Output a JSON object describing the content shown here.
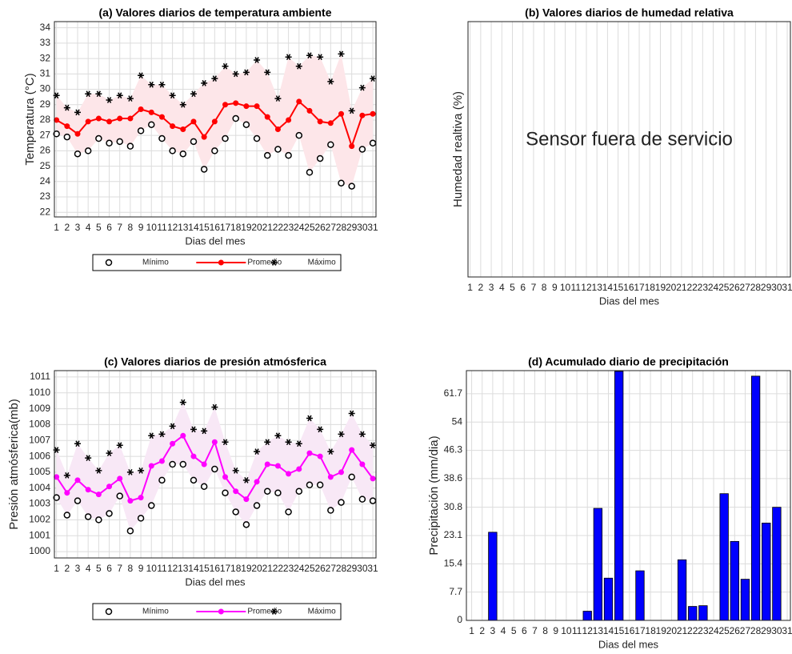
{
  "chart_data": [
    {
      "type": "line",
      "title": "(a) Valores diarios de temperatura ambiente",
      "xlabel": "Dias del mes",
      "ylabel": "Temperatura (°C)",
      "x": [
        1,
        2,
        3,
        4,
        5,
        6,
        7,
        8,
        9,
        10,
        11,
        12,
        13,
        14,
        15,
        16,
        17,
        18,
        19,
        20,
        21,
        22,
        23,
        24,
        25,
        26,
        27,
        28,
        29,
        30,
        31
      ],
      "xlim": [
        0.8,
        31.3
      ],
      "xticks": [
        1,
        2,
        3,
        4,
        5,
        6,
        7,
        8,
        9,
        10,
        11,
        12,
        13,
        14,
        15,
        16,
        17,
        18,
        19,
        20,
        21,
        22,
        23,
        24,
        25,
        26,
        27,
        28,
        29,
        30,
        31
      ],
      "ylim": [
        21.7,
        34.4
      ],
      "yticks": [
        22,
        23,
        24,
        25,
        26,
        27,
        28,
        29,
        30,
        31,
        32,
        33,
        34
      ],
      "grid": true,
      "legend": "below",
      "band": {
        "color": "#fde6e9"
      },
      "series": [
        {
          "name": "Mínimo",
          "color": "#000000",
          "marker": "circle-open",
          "line": false,
          "values": [
            27.1,
            26.9,
            25.8,
            26.0,
            26.8,
            26.5,
            26.6,
            26.3,
            27.3,
            27.7,
            26.8,
            26.0,
            25.8,
            26.6,
            24.8,
            26.0,
            26.8,
            28.1,
            27.7,
            26.8,
            25.7,
            26.1,
            25.7,
            27.0,
            24.6,
            25.5,
            26.4,
            23.9,
            23.7,
            26.1,
            26.5
          ]
        },
        {
          "name": "Promedio",
          "color": "#ff0000",
          "marker": "circle",
          "line": true,
          "values": [
            28.0,
            27.6,
            27.1,
            27.9,
            28.1,
            27.9,
            28.1,
            28.1,
            28.7,
            28.5,
            28.2,
            27.6,
            27.4,
            27.9,
            26.9,
            27.9,
            29.0,
            29.1,
            28.9,
            28.9,
            28.2,
            27.4,
            28.0,
            29.2,
            28.6,
            27.9,
            27.8,
            28.4,
            26.3,
            28.3,
            28.4
          ]
        },
        {
          "name": "Máximo",
          "color": "#000000",
          "marker": "star",
          "line": false,
          "values": [
            29.6,
            28.8,
            28.5,
            29.7,
            29.7,
            29.3,
            29.6,
            29.4,
            30.9,
            30.3,
            30.3,
            29.6,
            29.0,
            29.7,
            30.4,
            30.7,
            31.5,
            31.0,
            31.1,
            31.9,
            31.1,
            29.4,
            32.1,
            31.5,
            32.2,
            32.1,
            30.5,
            32.3,
            28.6,
            30.1,
            30.7
          ]
        }
      ]
    },
    {
      "type": "line",
      "title": "(b) Valores diarios de humedad relativa",
      "xlabel": "Dias del mes",
      "ylabel": "Humedad realtiva (%)",
      "annotation": "Sensor fuera de servicio",
      "xlim": [
        0.8,
        31.3
      ],
      "xticks": [
        1,
        2,
        3,
        4,
        5,
        6,
        7,
        8,
        9,
        10,
        11,
        12,
        13,
        14,
        15,
        16,
        17,
        18,
        19,
        20,
        21,
        22,
        23,
        24,
        25,
        26,
        27,
        28,
        29,
        30,
        31
      ],
      "grid": true,
      "series": []
    },
    {
      "type": "line",
      "title": "(c) Valores diarios de presión atmósferica",
      "xlabel": "Dias del mes",
      "ylabel": "Presión atmósferica(mb)",
      "x": [
        1,
        2,
        3,
        4,
        5,
        6,
        7,
        8,
        9,
        10,
        11,
        12,
        13,
        14,
        15,
        16,
        17,
        18,
        19,
        20,
        21,
        22,
        23,
        24,
        25,
        26,
        27,
        28,
        29,
        30,
        31
      ],
      "xlim": [
        0.8,
        31.3
      ],
      "xticks": [
        1,
        2,
        3,
        4,
        5,
        6,
        7,
        8,
        9,
        10,
        11,
        12,
        13,
        14,
        15,
        16,
        17,
        18,
        19,
        20,
        21,
        22,
        23,
        24,
        25,
        26,
        27,
        28,
        29,
        30,
        31
      ],
      "ylim": [
        999.6,
        1011.4
      ],
      "yticks": [
        1000,
        1001,
        1002,
        1003,
        1004,
        1005,
        1006,
        1007,
        1008,
        1009,
        1010,
        1011
      ],
      "grid": true,
      "legend": "below",
      "band": {
        "color": "#f8e8f6"
      },
      "series": [
        {
          "name": "Mínimo",
          "color": "#000000",
          "marker": "circle-open",
          "line": false,
          "values": [
            1003.4,
            1002.3,
            1003.2,
            1002.2,
            1002.0,
            1002.4,
            1003.5,
            1001.3,
            1002.1,
            1002.9,
            1004.5,
            1005.5,
            1005.5,
            1004.5,
            1004.1,
            1005.2,
            1003.7,
            1002.5,
            1001.7,
            1002.9,
            1003.8,
            1003.7,
            1002.5,
            1003.8,
            1004.2,
            1004.2,
            1002.6,
            1003.1,
            1004.7,
            1003.3,
            1003.2
          ]
        },
        {
          "name": "Promedio",
          "color": "#ff00ff",
          "marker": "circle",
          "line": true,
          "values": [
            1004.7,
            1003.7,
            1004.5,
            1003.9,
            1003.6,
            1004.1,
            1004.6,
            1003.2,
            1003.4,
            1005.4,
            1005.7,
            1006.8,
            1007.3,
            1006.0,
            1005.5,
            1006.9,
            1004.7,
            1003.8,
            1003.3,
            1004.4,
            1005.5,
            1005.4,
            1004.9,
            1005.2,
            1006.2,
            1006.0,
            1004.7,
            1005.0,
            1006.4,
            1005.5,
            1004.6
          ]
        },
        {
          "name": "Máximo",
          "color": "#000000",
          "marker": "star",
          "line": false,
          "values": [
            1006.4,
            1004.8,
            1006.8,
            1005.9,
            1005.1,
            1006.2,
            1006.7,
            1005.0,
            1005.1,
            1007.3,
            1007.4,
            1007.9,
            1009.4,
            1007.7,
            1007.6,
            1009.1,
            1006.9,
            1005.1,
            1004.5,
            1006.3,
            1006.9,
            1007.3,
            1006.9,
            1006.8,
            1008.4,
            1007.7,
            1006.3,
            1007.4,
            1008.7,
            1007.4,
            1006.7
          ]
        }
      ]
    },
    {
      "type": "bar",
      "title": "(d) Acumulado diario de precipitación",
      "xlabel": "Dias del mes",
      "ylabel": "Precipitación  (mm/dia)",
      "x": [
        1,
        2,
        3,
        4,
        5,
        6,
        7,
        8,
        9,
        10,
        11,
        12,
        13,
        14,
        15,
        16,
        17,
        18,
        19,
        20,
        21,
        22,
        23,
        24,
        25,
        26,
        27,
        28,
        29,
        30,
        31
      ],
      "xlim": [
        0.5,
        31.3
      ],
      "xticks": [
        1,
        2,
        3,
        4,
        5,
        6,
        7,
        8,
        9,
        10,
        11,
        12,
        13,
        14,
        15,
        16,
        17,
        18,
        19,
        20,
        21,
        22,
        23,
        24,
        25,
        26,
        27,
        28,
        29,
        30,
        31
      ],
      "ylim": [
        0,
        68
      ],
      "yticks": [
        0,
        7.7,
        15.4,
        23.1,
        30.8,
        38.6,
        46.3,
        54,
        61.7
      ],
      "grid": true,
      "color": "#0000ff",
      "values": [
        0,
        0,
        24.0,
        0,
        0,
        0,
        0,
        0,
        0,
        0,
        0,
        2.5,
        30.5,
        11.5,
        67.8,
        0,
        13.5,
        0,
        0,
        0,
        16.5,
        3.8,
        4.0,
        0,
        34.5,
        21.5,
        11.2,
        66.5,
        26.5,
        30.8,
        0
      ]
    }
  ]
}
